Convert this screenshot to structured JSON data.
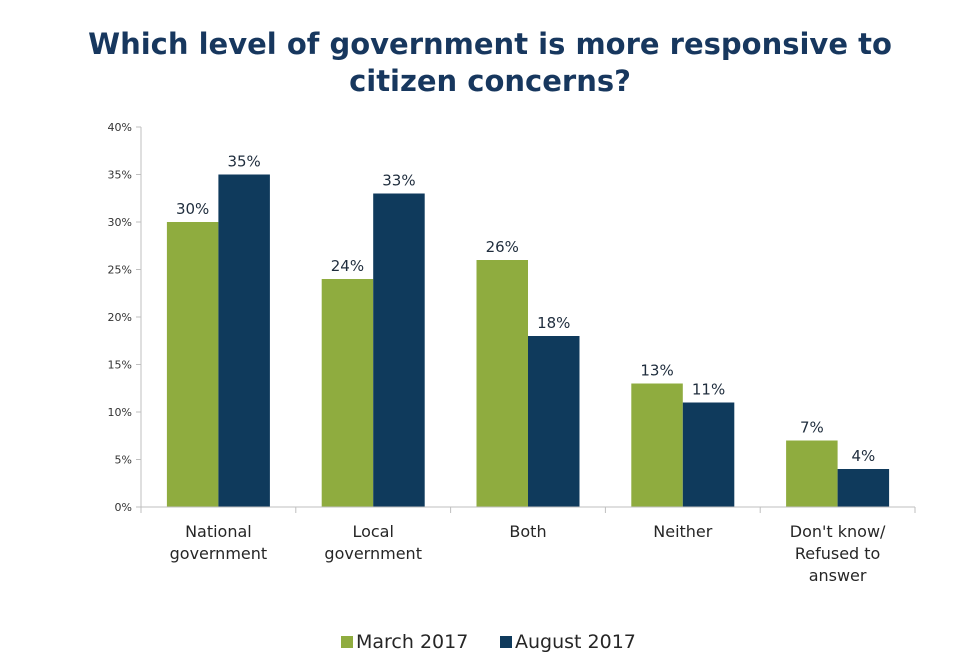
{
  "chart_data": {
    "type": "bar",
    "title": "Which level of government is more responsive to citizen concerns?",
    "categories": [
      [
        "National",
        "government"
      ],
      [
        "Local",
        "government"
      ],
      [
        "Both"
      ],
      [
        "Neither"
      ],
      [
        "Don't know/",
        "Refused to",
        "answer"
      ]
    ],
    "series": [
      {
        "name": "March 2017",
        "color": "#8fac3f",
        "values": [
          30,
          24,
          26,
          13,
          7
        ],
        "labels": [
          "30%",
          "24%",
          "26%",
          "13%",
          "7%"
        ]
      },
      {
        "name": "August 2017",
        "color": "#0f3a5c",
        "values": [
          35,
          33,
          18,
          11,
          4
        ],
        "labels": [
          "35%",
          "33%",
          "18%",
          "11%",
          "4%"
        ]
      }
    ],
    "ylim": [
      0,
      40
    ],
    "yticks": [
      0,
      5,
      10,
      15,
      20,
      25,
      30,
      35,
      40
    ],
    "ytick_labels": [
      "0%",
      "5%",
      "10%",
      "15%",
      "20%",
      "25%",
      "30%",
      "35%",
      "40%"
    ],
    "legend_position": "bottom",
    "grid": false
  }
}
